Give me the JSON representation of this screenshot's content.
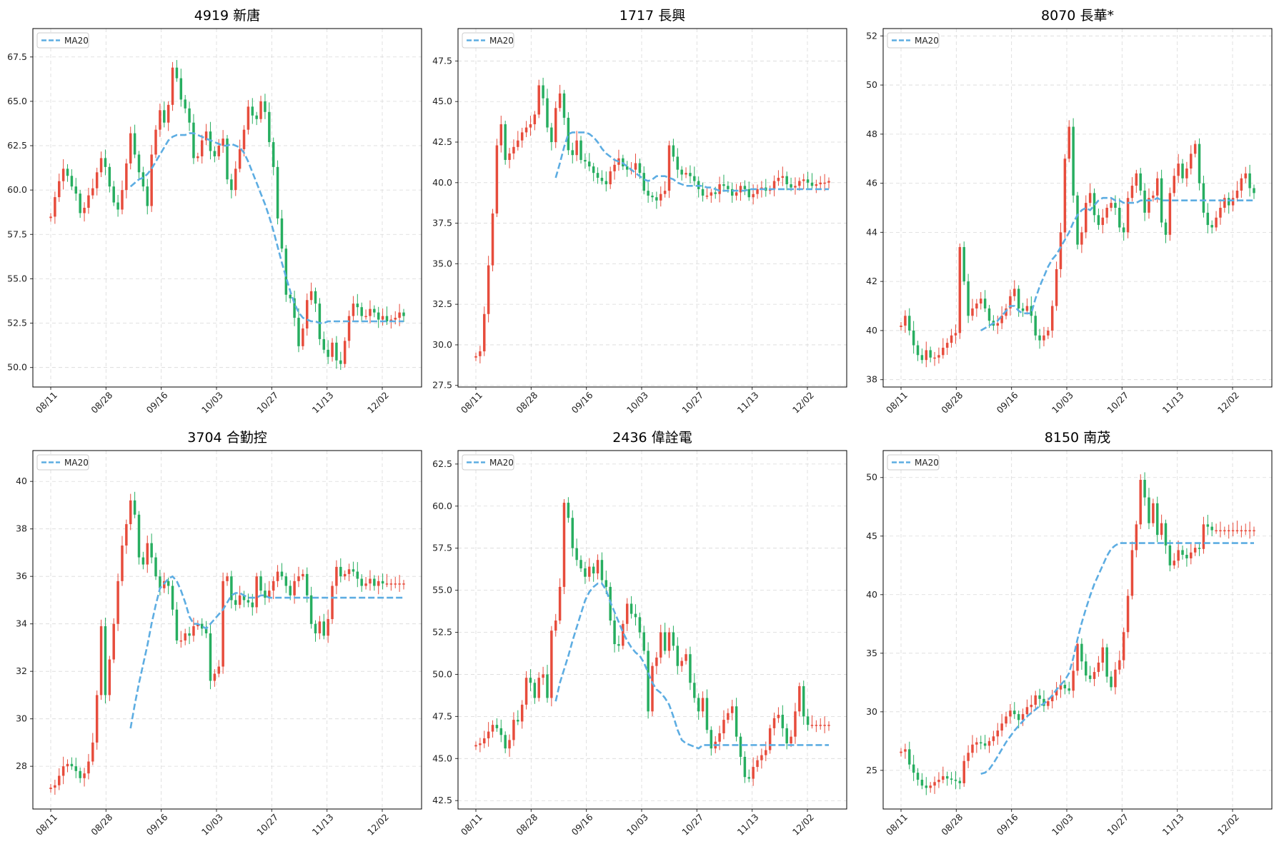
{
  "colors": {
    "up": "#e74c3c",
    "down": "#27ae60",
    "ma": "#5dade2",
    "grid": "#d9d9d9"
  },
  "chart_data": [
    {
      "type": "candlestick",
      "title": "4919 新唐",
      "x_ticks": [
        "08/11",
        "08/28",
        "09/16",
        "10/03",
        "10/27",
        "11/13",
        "12/02"
      ],
      "y_ticks": [
        "50.0",
        "52.5",
        "55.0",
        "57.5",
        "60.0",
        "62.5",
        "65.0",
        "67.5"
      ],
      "ylim": [
        48.9,
        69.1
      ],
      "legend": "MA20",
      "legend_position": "upper-left",
      "n_points": 85,
      "ma_start_index": 19,
      "close": [
        58.5,
        59.6,
        60.5,
        61.2,
        60.8,
        60.2,
        59.8,
        58.7,
        59.0,
        59.7,
        60.1,
        61.0,
        61.8,
        61.3,
        60.2,
        59.3,
        58.9,
        60.0,
        61.5,
        63.2,
        62.0,
        61.0,
        60.2,
        59.1,
        62.0,
        63.4,
        64.5,
        63.8,
        64.8,
        66.9,
        66.3,
        65.1,
        64.6,
        63.8,
        61.8,
        61.9,
        62.8,
        63.3,
        62.2,
        61.9,
        62.5,
        62.9,
        60.6,
        60.0,
        61.2,
        62.3,
        63.4,
        64.7,
        64.2,
        64.0,
        65.0,
        64.4,
        62.7,
        61.3,
        58.4,
        56.7,
        54.1,
        53.9,
        52.8,
        51.2,
        52.2,
        53.8,
        54.3,
        53.6,
        51.6,
        51.0,
        50.6,
        51.4,
        50.4,
        50.2,
        51.5,
        52.9,
        53.6,
        53.4,
        52.9,
        52.9,
        53.3,
        53.1,
        52.7,
        52.9,
        52.6,
        52.7,
        52.8,
        53.1,
        52.9
      ],
      "ma20": [
        60.2,
        60.4,
        60.6,
        60.7,
        60.9,
        61.2,
        61.6,
        62.0,
        62.4,
        62.8,
        63.0,
        63.1,
        63.1,
        63.1,
        63.2,
        63.2,
        63.1,
        63.0,
        62.9,
        62.8,
        62.7,
        62.6,
        62.5,
        62.5,
        62.6,
        62.5,
        62.4,
        62.1,
        61.6,
        61.0,
        60.4,
        59.8,
        59.2,
        58.5,
        57.7,
        56.8,
        55.9,
        55.1,
        54.3,
        53.6,
        53.1,
        52.8,
        52.7,
        52.6,
        52.6,
        52.5,
        52.5,
        52.6,
        52.6,
        52.6,
        52.6,
        52.6,
        52.6,
        52.6,
        52.6,
        52.6,
        52.6,
        52.6,
        52.6,
        52.6,
        52.6,
        52.6,
        52.6,
        52.6,
        52.6,
        52.6
      ]
    },
    {
      "type": "candlestick",
      "title": "1717 長興",
      "x_ticks": [
        "08/11",
        "08/28",
        "09/16",
        "10/03",
        "10/27",
        "11/13",
        "12/02"
      ],
      "y_ticks": [
        "27.5",
        "30.0",
        "32.5",
        "35.0",
        "37.5",
        "40.0",
        "42.5",
        "45.0",
        "47.5"
      ],
      "ylim": [
        27.4,
        49.5
      ],
      "legend": "MA20",
      "legend_position": "upper-left",
      "n_points": 85,
      "ma_start_index": 19,
      "close": [
        29.3,
        29.6,
        31.9,
        34.9,
        38.1,
        42.3,
        43.6,
        41.4,
        41.8,
        42.2,
        42.6,
        43.1,
        43.4,
        43.6,
        44.2,
        46.0,
        45.2,
        43.4,
        42.5,
        44.6,
        45.5,
        44.0,
        42.0,
        41.7,
        42.6,
        41.4,
        41.3,
        41.0,
        40.6,
        40.3,
        40.1,
        39.9,
        40.7,
        41.1,
        41.5,
        41.0,
        40.8,
        40.8,
        41.2,
        40.6,
        39.5,
        39.2,
        39.1,
        38.9,
        39.3,
        39.5,
        42.3,
        41.6,
        40.8,
        40.5,
        40.6,
        40.4,
        40.1,
        39.6,
        39.2,
        39.2,
        39.4,
        39.3,
        39.9,
        39.8,
        39.6,
        39.2,
        39.4,
        39.8,
        39.6,
        39.1,
        39.3,
        39.6,
        39.7,
        39.5,
        39.6,
        40.1,
        40.3,
        40.4,
        39.9,
        39.7,
        39.8,
        40.1,
        40.2,
        40.0,
        39.8,
        39.9,
        40.0,
        40.0,
        40.1
      ],
      "ma20": [
        40.3,
        41.2,
        42.2,
        43.0,
        43.1,
        43.1,
        43.1,
        43.1,
        43.0,
        42.8,
        42.5,
        42.1,
        41.8,
        41.6,
        41.4,
        41.3,
        41.2,
        41.0,
        40.8,
        40.6,
        40.4,
        40.2,
        40.1,
        40.2,
        40.4,
        40.4,
        40.4,
        40.3,
        40.2,
        40.0,
        39.9,
        39.8,
        39.8,
        39.8,
        39.8,
        39.8,
        39.7,
        39.7,
        39.6,
        39.5,
        39.5,
        39.5,
        39.5,
        39.5,
        39.5,
        39.5,
        39.6,
        39.6,
        39.6,
        39.6,
        39.6,
        39.6,
        39.6,
        39.6,
        39.6,
        39.6,
        39.6,
        39.6,
        39.6,
        39.6,
        39.6,
        39.6,
        39.6,
        39.6,
        39.6,
        39.6
      ]
    },
    {
      "type": "candlestick",
      "title": "8070 長華*",
      "x_ticks": [
        "08/11",
        "08/28",
        "09/16",
        "10/03",
        "10/27",
        "11/13",
        "12/02"
      ],
      "y_ticks": [
        "38",
        "40",
        "42",
        "44",
        "46",
        "48",
        "50",
        "52"
      ],
      "ylim": [
        37.7,
        52.3
      ],
      "legend": "MA20",
      "legend_position": "upper-left",
      "n_points": 85,
      "ma_start_index": 19,
      "close": [
        40.2,
        40.6,
        40.0,
        39.4,
        39.0,
        38.8,
        39.2,
        38.9,
        38.9,
        39.0,
        39.3,
        39.5,
        39.8,
        39.9,
        43.4,
        42.0,
        40.6,
        40.9,
        41.1,
        41.3,
        40.9,
        40.4,
        40.2,
        40.3,
        40.6,
        40.9,
        41.4,
        41.7,
        40.9,
        40.8,
        41.0,
        40.6,
        39.8,
        39.6,
        39.8,
        40.0,
        41.0,
        42.5,
        44.0,
        47.0,
        48.3,
        45.5,
        43.5,
        44.0,
        45.2,
        45.6,
        44.7,
        44.3,
        44.6,
        45.0,
        45.2,
        45.0,
        44.2,
        44.0,
        45.4,
        45.9,
        46.4,
        45.7,
        44.8,
        45.4,
        45.5,
        46.2,
        44.4,
        43.9,
        45.6,
        46.3,
        46.8,
        46.2,
        46.6,
        47.2,
        47.6,
        46.0,
        44.8,
        44.3,
        44.2,
        44.6,
        45.0,
        45.4,
        45.1,
        45.4,
        45.7,
        46.2,
        46.4,
        45.8,
        45.6
      ],
      "ma20": [
        40.0,
        40.1,
        40.2,
        40.3,
        40.4,
        40.6,
        40.8,
        41.0,
        41.0,
        40.8,
        40.7,
        40.7,
        40.7,
        41.3,
        41.8,
        42.2,
        42.6,
        42.9,
        43.1,
        43.4,
        43.7,
        44.0,
        44.4,
        44.7,
        44.9,
        45.0,
        44.9,
        45.1,
        45.3,
        45.4,
        45.4,
        45.4,
        45.3,
        45.3,
        45.2,
        45.2,
        45.2,
        45.2,
        45.3,
        45.3,
        45.3,
        45.3,
        45.4,
        45.3,
        45.3,
        45.3,
        45.3,
        45.3,
        45.3,
        45.3,
        45.3,
        45.3,
        45.3,
        45.3,
        45.3,
        45.3,
        45.3,
        45.3,
        45.3,
        45.3,
        45.3,
        45.3,
        45.3,
        45.3,
        45.3,
        45.3
      ]
    },
    {
      "type": "candlestick",
      "title": "3704 合勤控",
      "x_ticks": [
        "08/11",
        "08/28",
        "09/16",
        "10/03",
        "10/27",
        "11/13",
        "12/02"
      ],
      "y_ticks": [
        "28",
        "30",
        "32",
        "34",
        "36",
        "38",
        "40"
      ],
      "ylim": [
        26.2,
        41.3
      ],
      "legend": "MA20",
      "legend_position": "upper-left",
      "n_points": 85,
      "ma_start_index": 19,
      "close": [
        27.1,
        27.2,
        27.6,
        28.0,
        28.1,
        28.0,
        27.8,
        27.5,
        27.7,
        28.2,
        29.0,
        31.0,
        33.9,
        31.0,
        32.5,
        34.0,
        35.8,
        37.3,
        38.2,
        39.2,
        38.6,
        36.8,
        36.5,
        37.4,
        36.8,
        36.0,
        35.5,
        35.8,
        35.6,
        34.6,
        33.3,
        33.3,
        33.6,
        33.5,
        33.9,
        34.0,
        33.8,
        33.6,
        31.6,
        31.9,
        32.2,
        35.8,
        36.0,
        35.0,
        34.8,
        35.2,
        35.0,
        34.9,
        34.7,
        36.0,
        35.4,
        35.1,
        35.4,
        35.8,
        36.2,
        36.0,
        35.6,
        35.2,
        35.8,
        36.0,
        36.1,
        35.2,
        34.0,
        33.6,
        34.1,
        33.5,
        34.2,
        35.6,
        36.4,
        36.0,
        36.1,
        36.3,
        36.2,
        35.9,
        35.6,
        35.7,
        35.9,
        35.6,
        35.8,
        35.7,
        35.7,
        35.7,
        35.7,
        35.7,
        35.7
      ],
      "ma20": [
        29.6,
        30.6,
        31.5,
        32.3,
        33.1,
        34.0,
        34.8,
        35.5,
        35.7,
        35.9,
        36.0,
        35.8,
        35.4,
        34.9,
        34.3,
        34.0,
        34.0,
        33.9,
        33.8,
        34.0,
        34.2,
        34.4,
        34.6,
        34.9,
        35.2,
        35.3,
        35.3,
        35.2,
        35.1,
        35.1,
        35.1,
        35.2,
        35.2,
        35.1,
        35.1,
        35.1,
        35.1,
        35.1,
        35.1,
        35.1,
        35.1,
        35.1,
        35.1,
        35.1,
        35.1,
        35.1,
        35.1,
        35.1,
        35.1,
        35.1,
        35.1,
        35.1,
        35.1,
        35.1,
        35.1,
        35.1,
        35.1,
        35.1,
        35.1,
        35.1,
        35.1,
        35.1,
        35.1,
        35.1,
        35.1,
        35.1
      ]
    },
    {
      "type": "candlestick",
      "title": "2436 偉詮電",
      "x_ticks": [
        "08/11",
        "08/28",
        "09/16",
        "10/03",
        "10/27",
        "11/13",
        "12/02"
      ],
      "y_ticks": [
        "42.5",
        "45.0",
        "47.5",
        "50.0",
        "52.5",
        "55.0",
        "57.5",
        "60.0",
        "62.5"
      ],
      "ylim": [
        42.0,
        63.3
      ],
      "legend": "MA20",
      "legend_position": "upper-left",
      "n_points": 85,
      "ma_start_index": 19,
      "close": [
        45.8,
        45.9,
        46.2,
        46.6,
        47.0,
        46.8,
        46.4,
        45.6,
        46.1,
        47.3,
        47.2,
        48.2,
        49.8,
        49.5,
        48.6,
        49.8,
        50.0,
        48.6,
        52.6,
        53.2,
        55.2,
        60.2,
        59.3,
        57.5,
        56.8,
        56.3,
        55.8,
        56.4,
        56.0,
        56.8,
        55.6,
        55.2,
        53.2,
        51.8,
        51.7,
        53.0,
        54.2,
        53.6,
        53.4,
        52.5,
        51.4,
        47.8,
        50.5,
        51.0,
        52.5,
        51.4,
        52.5,
        51.7,
        50.5,
        50.8,
        51.2,
        49.5,
        48.6,
        47.8,
        48.6,
        46.7,
        45.6,
        46.0,
        46.5,
        47.3,
        47.7,
        48.1,
        46.3,
        45.1,
        43.9,
        43.8,
        44.5,
        44.9,
        45.2,
        45.5,
        46.8,
        47.4,
        47.6,
        46.8,
        45.9,
        46.3,
        47.8,
        49.3,
        47.5,
        47.0,
        47.0,
        47.0,
        47.0,
        47.0,
        47.0
      ],
      "ma20": [
        48.4,
        49.5,
        50.3,
        51.1,
        52.0,
        52.8,
        53.6,
        54.4,
        54.9,
        55.2,
        55.4,
        55.4,
        55.0,
        54.3,
        53.7,
        53.1,
        52.5,
        52.0,
        51.6,
        51.3,
        51.1,
        50.7,
        50.1,
        49.5,
        49.1,
        48.9,
        48.6,
        48.2,
        47.5,
        46.7,
        46.1,
        45.9,
        45.8,
        45.7,
        45.6,
        45.8,
        45.8,
        45.8,
        45.8,
        45.8,
        45.8,
        45.8,
        45.8,
        45.8,
        45.8,
        45.8,
        45.8,
        45.8,
        45.8,
        45.8,
        45.8,
        45.8,
        45.8,
        45.8,
        45.8,
        45.8,
        45.8,
        45.8,
        45.8,
        45.8,
        45.8,
        45.8,
        45.8,
        45.8,
        45.8,
        45.8
      ]
    },
    {
      "type": "candlestick",
      "title": "8150 南茂",
      "x_ticks": [
        "08/11",
        "08/28",
        "09/16",
        "10/03",
        "10/27",
        "11/13",
        "12/02"
      ],
      "y_ticks": [
        "25",
        "30",
        "35",
        "40",
        "45",
        "50"
      ],
      "ylim": [
        21.7,
        52.3
      ],
      "legend": "MA20",
      "legend_position": "upper-left",
      "n_points": 85,
      "ma_start_index": 19,
      "close": [
        26.6,
        26.8,
        25.5,
        24.8,
        24.2,
        23.7,
        23.5,
        23.7,
        24.0,
        24.2,
        24.5,
        24.3,
        24.2,
        24.1,
        23.9,
        25.8,
        26.5,
        27.2,
        27.4,
        27.3,
        27.1,
        27.5,
        27.9,
        28.4,
        29.0,
        29.6,
        30.1,
        29.8,
        29.3,
        29.8,
        30.4,
        30.6,
        31.4,
        31.1,
        30.5,
        30.9,
        31.4,
        31.9,
        32.3,
        32.0,
        31.8,
        33.5,
        35.8,
        34.3,
        33.1,
        32.8,
        33.4,
        34.2,
        35.5,
        33.0,
        32.1,
        33.6,
        34.4,
        36.8,
        39.9,
        43.8,
        46.0,
        49.8,
        48.3,
        46.1,
        47.8,
        45.1,
        46.1,
        44.2,
        42.5,
        42.9,
        43.8,
        43.4,
        43.1,
        43.6,
        44.0,
        43.9,
        46.0,
        45.8,
        45.5,
        45.5,
        45.5,
        45.5,
        45.5,
        45.5,
        45.5,
        45.5,
        45.5,
        45.5,
        45.5
      ],
      "ma20": [
        24.7,
        24.8,
        25.1,
        25.6,
        26.2,
        26.8,
        27.4,
        27.9,
        28.4,
        28.8,
        29.2,
        29.6,
        29.9,
        30.2,
        30.5,
        30.7,
        31.0,
        31.4,
        31.9,
        32.3,
        32.7,
        33.3,
        34.6,
        36.2,
        37.6,
        38.8,
        39.9,
        40.9,
        41.7,
        42.5,
        43.3,
        43.9,
        44.2,
        44.4,
        44.4,
        44.4,
        44.4,
        44.4,
        44.4,
        44.4,
        44.4,
        44.4,
        44.4,
        44.4,
        44.4,
        44.4,
        44.4,
        44.4,
        44.4,
        44.4,
        44.4,
        44.4,
        44.4,
        44.4,
        44.4,
        44.4,
        44.4,
        44.4,
        44.4,
        44.4,
        44.4,
        44.4,
        44.4,
        44.4,
        44.4,
        44.4
      ]
    }
  ]
}
